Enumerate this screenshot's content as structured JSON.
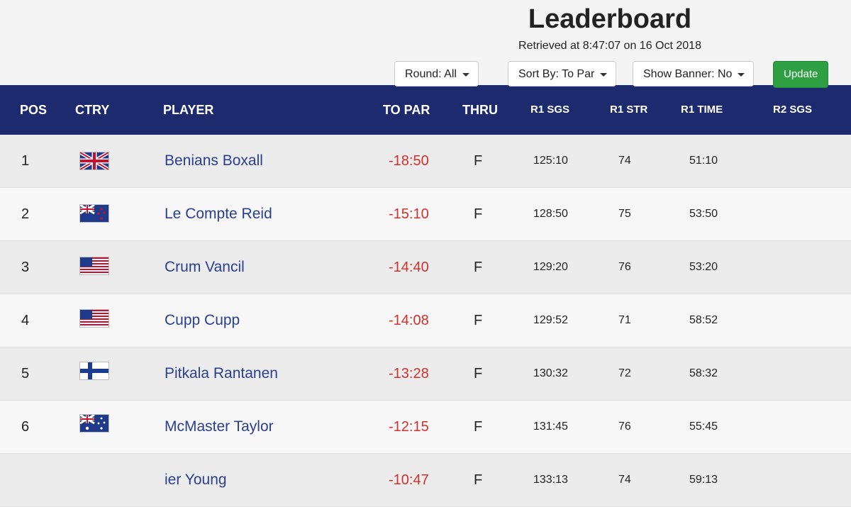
{
  "header": {
    "title": "Leaderboard",
    "retrieved": "Retrieved at 8:47:07 on 16 Oct 2018"
  },
  "controls": {
    "round": "Round: All",
    "sort": "Sort By: To Par",
    "banner": "Show Banner: No",
    "update": "Update"
  },
  "table": {
    "columns": {
      "pos": "POS",
      "ctry": "CTRY",
      "player": "PLAYER",
      "to_par": "TO PAR",
      "thru": "THRU",
      "r1_sgs": "R1 SGS",
      "r1_str": "R1 STR",
      "r1_time": "R1 TIME",
      "r2_sgs": "R2 SGS"
    },
    "rows": [
      {
        "pos": "1",
        "player": "Benians Boxall",
        "to_par": "-18:50",
        "thru": "F",
        "r1_sgs": "125:10",
        "r1_str": "74",
        "r1_time": "51:10"
      },
      {
        "pos": "2",
        "player": "Le Compte Reid",
        "to_par": "-15:10",
        "thru": "F",
        "r1_sgs": "128:50",
        "r1_str": "75",
        "r1_time": "53:50"
      },
      {
        "pos": "3",
        "player": "Crum Vancil",
        "to_par": "-14:40",
        "thru": "F",
        "r1_sgs": "129:20",
        "r1_str": "76",
        "r1_time": "53:20"
      },
      {
        "pos": "4",
        "player": "Cupp Cupp",
        "to_par": "-14:08",
        "thru": "F",
        "r1_sgs": "129:52",
        "r1_str": "71",
        "r1_time": "58:52"
      },
      {
        "pos": "5",
        "player": "Pitkala Rantanen",
        "to_par": "-13:28",
        "thru": "F",
        "r1_sgs": "130:32",
        "r1_str": "72",
        "r1_time": "58:32"
      },
      {
        "pos": "6",
        "player": "McMaster Taylor",
        "to_par": "-12:15",
        "thru": "F",
        "r1_sgs": "131:45",
        "r1_str": "76",
        "r1_time": "55:45"
      },
      {
        "player": "ier Young",
        "to_par": "-10:47",
        "thru": "F",
        "r1_sgs": "133:13",
        "r1_str": "74",
        "r1_time": "59:13"
      }
    ]
  }
}
